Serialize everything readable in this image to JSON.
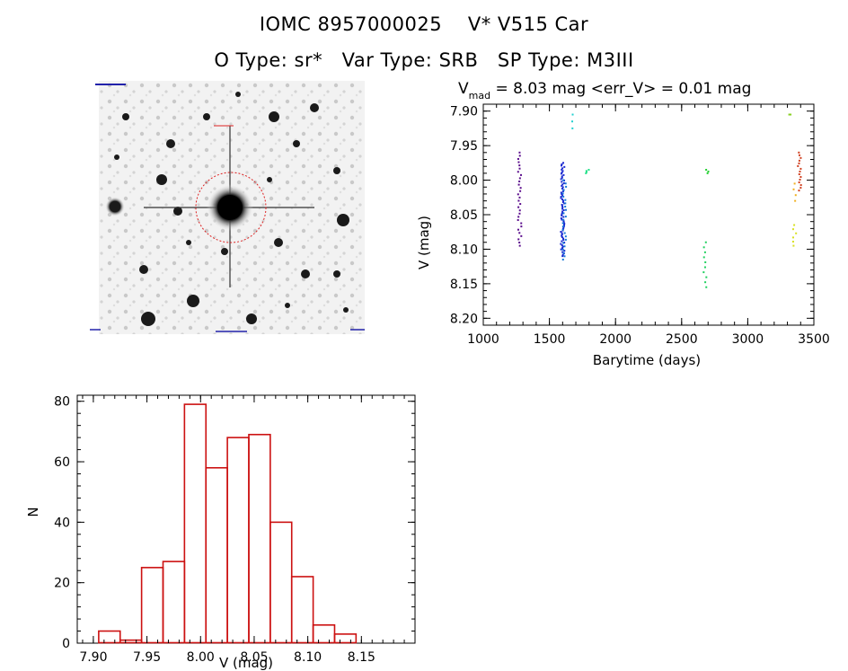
{
  "title": {
    "line1_id": "IOMC 8957000025",
    "line1_name": "V* V515 Car",
    "line2_otype_label": "O Type:",
    "line2_otype": "sr*",
    "line2_vartype_label": "Var Type:",
    "line2_vartype": "SRB",
    "line2_sptype_label": "SP Type:",
    "line2_sptype": "M3III"
  },
  "finder": {
    "description_colors": {
      "background": "#efefef",
      "circle": "#dd2222"
    }
  },
  "chart_data": [
    {
      "type": "scatter",
      "title_prefix": "V",
      "title_subscript": "mad",
      "title_rest": " = 8.03 mag <err_V> = 0.01 mag",
      "xlabel": "Barytime (days)",
      "ylabel": "V (mag)",
      "xlim": [
        1000,
        3500
      ],
      "ylim": [
        8.21,
        7.89
      ],
      "x_ticks": [
        1000,
        1500,
        2000,
        2500,
        3000,
        3500
      ],
      "x_tick_labels": [
        "1000",
        "1500",
        "2000",
        "2500",
        "3000",
        "3500"
      ],
      "y_ticks": [
        7.9,
        7.95,
        8.0,
        8.05,
        8.1,
        8.15,
        8.2
      ],
      "y_tick_labels": [
        "7.90",
        "7.95",
        "8.00",
        "8.05",
        "8.10",
        "8.15",
        "8.20"
      ],
      "groups": [
        {
          "x": 1275,
          "y_min": 7.96,
          "y_max": 8.095,
          "color": "#5a0c8c",
          "n": 30
        },
        {
          "x": 1600,
          "y_min": 7.975,
          "y_max": 8.11,
          "color": "#1a28d0",
          "n": 70
        },
        {
          "x": 1615,
          "y_min": 8.0,
          "y_max": 8.115,
          "color": "#1a7ad8",
          "n": 25
        },
        {
          "x": 1680,
          "y_min": 7.905,
          "y_max": 7.925,
          "color": "#22d0d0",
          "n": 3
        },
        {
          "x": 1790,
          "y_min": 7.985,
          "y_max": 7.99,
          "color": "#22e088",
          "n": 4
        },
        {
          "x": 2680,
          "y_min": 8.09,
          "y_max": 8.155,
          "color": "#22d060",
          "n": 10
        },
        {
          "x": 2690,
          "y_min": 7.985,
          "y_max": 7.99,
          "color": "#22d030",
          "n": 3
        },
        {
          "x": 3320,
          "y_min": 7.905,
          "y_max": 7.905,
          "color": "#88d022",
          "n": 2
        },
        {
          "x": 3355,
          "y_min": 8.065,
          "y_max": 8.095,
          "color": "#d8e022",
          "n": 6
        },
        {
          "x": 3360,
          "y_min": 8.005,
          "y_max": 8.03,
          "color": "#f0b020",
          "n": 4
        },
        {
          "x": 3390,
          "y_min": 7.96,
          "y_max": 8.015,
          "color": "#d04020",
          "n": 15
        }
      ]
    },
    {
      "type": "bar",
      "xlabel": "V (mag)",
      "ylabel": "N",
      "xlim": [
        7.885,
        8.2
      ],
      "ylim": [
        0,
        82
      ],
      "bin_width": 0.02,
      "bin_starts": [
        7.905,
        7.925,
        7.945,
        7.965,
        7.985,
        8.005,
        8.025,
        8.045,
        8.065,
        8.085,
        8.105,
        8.125,
        8.145
      ],
      "values": [
        4,
        1,
        25,
        27,
        79,
        58,
        68,
        69,
        40,
        22,
        6,
        3,
        0
      ],
      "bar_color": "#cc1111",
      "x_ticks": [
        7.9,
        7.95,
        8.0,
        8.05,
        8.1,
        8.15
      ],
      "x_tick_labels": [
        "7.90",
        "7.95",
        "8.00",
        "8.05",
        "8.10",
        "8.15"
      ],
      "y_ticks": [
        0,
        20,
        40,
        60,
        80
      ],
      "y_tick_labels": [
        "0",
        "20",
        "40",
        "60",
        "80"
      ]
    }
  ]
}
